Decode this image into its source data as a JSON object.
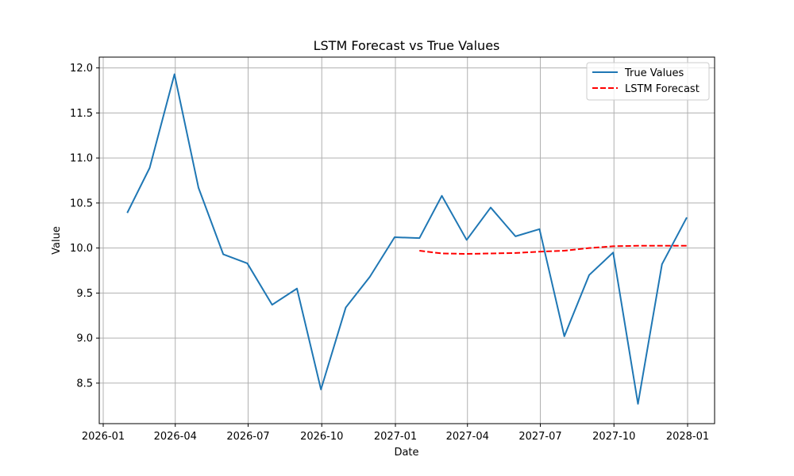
{
  "chart_data": {
    "type": "line",
    "title": "LSTM Forecast vs True Values",
    "xlabel": "Date",
    "ylabel": "Value",
    "grid": true,
    "legend_position": "top-right",
    "x_tick_labels": [
      "2026-01",
      "2026-04",
      "2026-07",
      "2026-10",
      "2027-01",
      "2027-04",
      "2027-07",
      "2027-10",
      "2028-01"
    ],
    "y_tick_labels": [
      "8.5",
      "9.0",
      "9.5",
      "10.0",
      "10.5",
      "11.0",
      "11.5",
      "12.0"
    ],
    "ylim": [
      8.05,
      12.12
    ],
    "series": [
      {
        "name": "True Values",
        "color": "#1f77b4",
        "line_style": "solid",
        "points": [
          {
            "x": "2026-01-31",
            "y": 10.39
          },
          {
            "x": "2026-02-28",
            "y": 10.89
          },
          {
            "x": "2026-03-31",
            "y": 11.93
          },
          {
            "x": "2026-04-30",
            "y": 10.67
          },
          {
            "x": "2026-05-31",
            "y": 9.93
          },
          {
            "x": "2026-06-30",
            "y": 9.83
          },
          {
            "x": "2026-07-31",
            "y": 9.37
          },
          {
            "x": "2026-08-31",
            "y": 9.55
          },
          {
            "x": "2026-09-30",
            "y": 8.43
          },
          {
            "x": "2026-10-31",
            "y": 9.34
          },
          {
            "x": "2026-11-30",
            "y": 9.68
          },
          {
            "x": "2026-12-31",
            "y": 10.12
          },
          {
            "x": "2027-01-31",
            "y": 10.11
          },
          {
            "x": "2027-02-28",
            "y": 10.58
          },
          {
            "x": "2027-03-31",
            "y": 10.09
          },
          {
            "x": "2027-04-30",
            "y": 10.45
          },
          {
            "x": "2027-05-31",
            "y": 10.13
          },
          {
            "x": "2027-06-30",
            "y": 10.21
          },
          {
            "x": "2027-07-31",
            "y": 9.02
          },
          {
            "x": "2027-08-31",
            "y": 9.7
          },
          {
            "x": "2027-09-30",
            "y": 9.95
          },
          {
            "x": "2027-10-31",
            "y": 8.27
          },
          {
            "x": "2027-11-30",
            "y": 9.82
          },
          {
            "x": "2027-12-31",
            "y": 10.34
          }
        ]
      },
      {
        "name": "LSTM Forecast",
        "color": "#ff0000",
        "line_style": "dashed",
        "points": [
          {
            "x": "2027-01-31",
            "y": 9.97
          },
          {
            "x": "2027-02-28",
            "y": 9.94
          },
          {
            "x": "2027-03-31",
            "y": 9.935
          },
          {
            "x": "2027-04-30",
            "y": 9.94
          },
          {
            "x": "2027-05-31",
            "y": 9.945
          },
          {
            "x": "2027-06-30",
            "y": 9.96
          },
          {
            "x": "2027-07-31",
            "y": 9.97
          },
          {
            "x": "2027-08-31",
            "y": 10.0
          },
          {
            "x": "2027-09-30",
            "y": 10.02
          },
          {
            "x": "2027-10-31",
            "y": 10.025
          },
          {
            "x": "2027-11-30",
            "y": 10.025
          },
          {
            "x": "2027-12-31",
            "y": 10.025
          }
        ]
      }
    ]
  }
}
